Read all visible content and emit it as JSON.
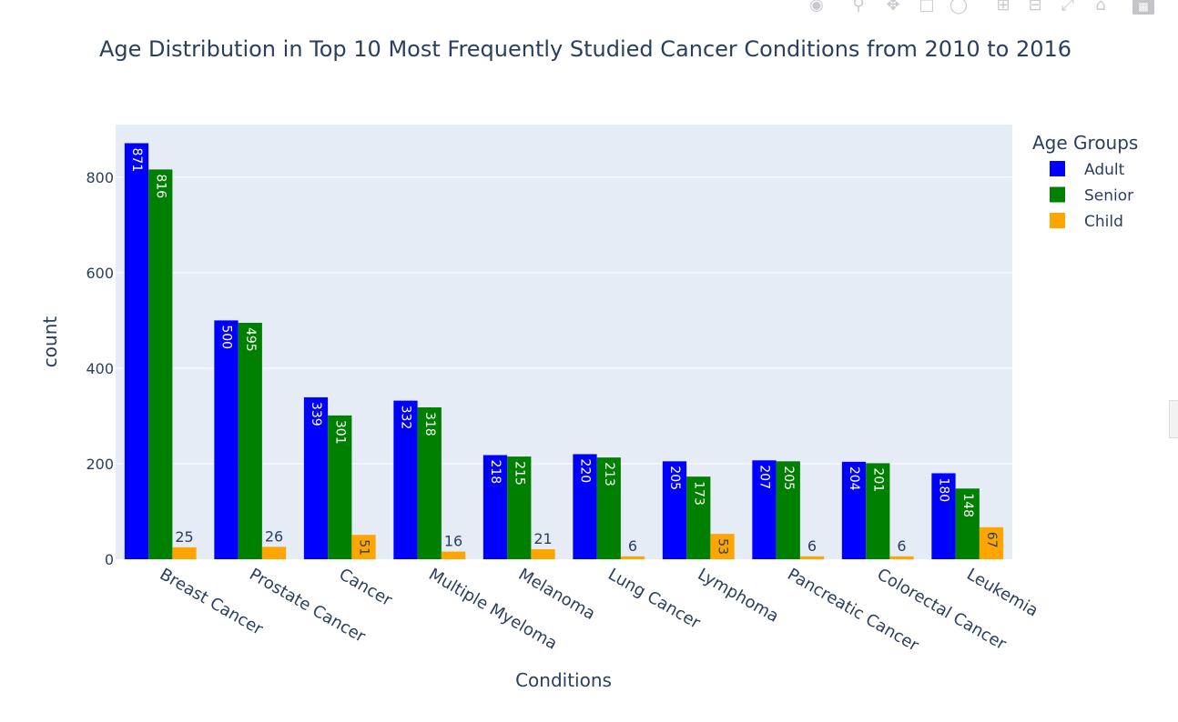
{
  "modebar": {
    "icons": [
      "camera-icon",
      "zoom-icon",
      "pan-icon",
      "box-select-icon",
      "lasso-icon",
      "zoom-in-icon",
      "zoom-out-icon",
      "autoscale-icon",
      "home-icon",
      "plotly-logo-icon"
    ]
  },
  "chart_data": {
    "type": "bar",
    "title": "Age Distribution in Top 10 Most Frequently Studied Cancer Conditions from 2010 to 2016",
    "xlabel": "Conditions",
    "ylabel": "count",
    "ylim": [
      0,
      910
    ],
    "yticks": [
      0,
      200,
      400,
      600,
      800
    ],
    "grid": true,
    "legend_title": "Age Groups",
    "legend_position": "top-right",
    "categories": [
      "Breast Cancer",
      "Prostate Cancer",
      "Cancer",
      "Multiple Myeloma",
      "Melanoma",
      "Lung Cancer",
      "Lymphoma",
      "Pancreatic Cancer",
      "Colorectal Cancer",
      "Leukemia"
    ],
    "series": [
      {
        "name": "Adult",
        "color": "#0000ff",
        "values": [
          871,
          500,
          339,
          332,
          218,
          220,
          205,
          207,
          204,
          180
        ]
      },
      {
        "name": "Senior",
        "color": "#008000",
        "values": [
          816,
          495,
          301,
          318,
          215,
          213,
          173,
          205,
          201,
          148
        ]
      },
      {
        "name": "Child",
        "color": "#ffa500",
        "values": [
          25,
          26,
          51,
          16,
          21,
          6,
          53,
          6,
          6,
          67
        ]
      }
    ],
    "plot_bg": "#e5ecf6",
    "text_color": "#2a3f5f"
  }
}
